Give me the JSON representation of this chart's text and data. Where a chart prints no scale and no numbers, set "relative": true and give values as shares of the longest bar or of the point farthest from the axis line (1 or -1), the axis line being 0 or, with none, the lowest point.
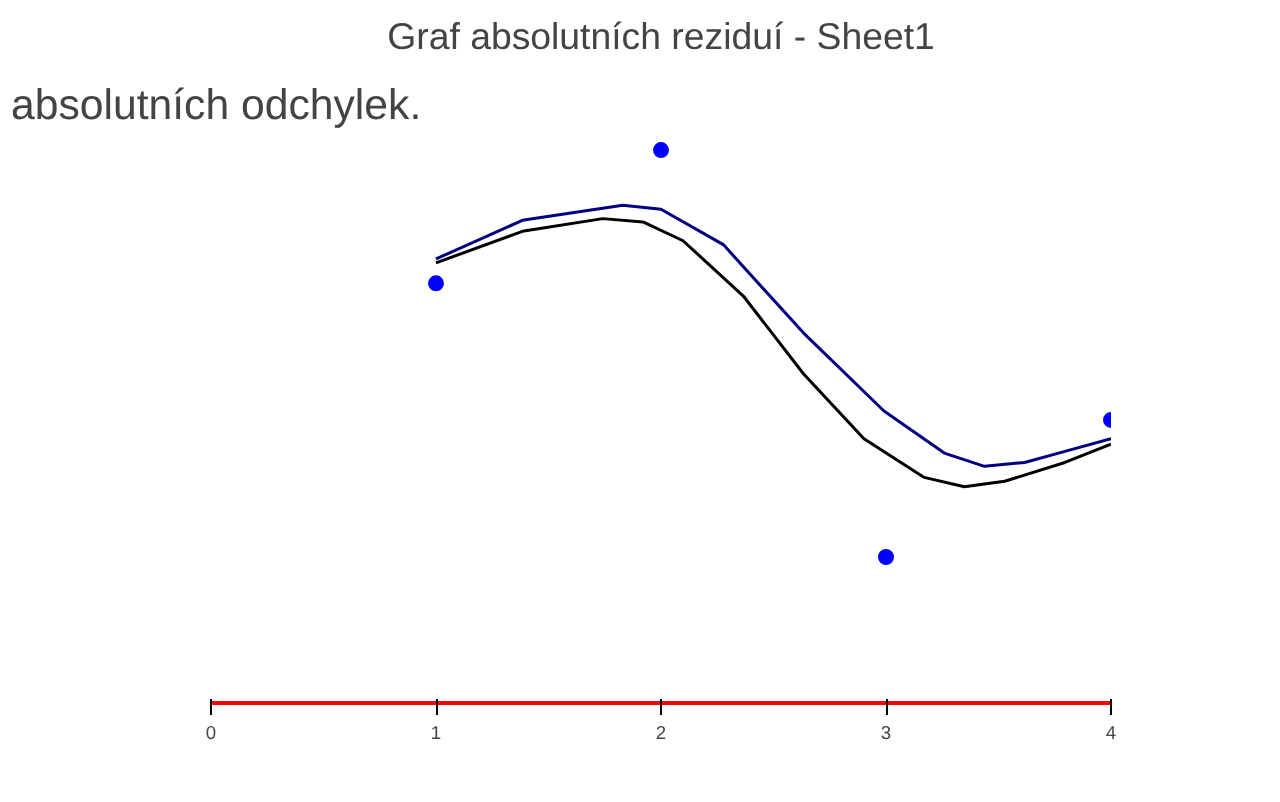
{
  "chart_data": {
    "type": "scatter",
    "title": "Graf absolutních reziduí - Sheet1",
    "annotations": [
      "absolutních odchylek."
    ],
    "relative": true,
    "marker": "circle",
    "xlim": [
      0,
      4
    ],
    "xticks": [
      0,
      1,
      2,
      3,
      4
    ],
    "series": [
      {
        "color": "#0000ff",
        "x": [
          1,
          2,
          3,
          4
        ],
        "values": [
          0.759,
          1.0,
          0.264,
          0.512
        ]
      },
      {
        "type": "line",
        "color": "#000080",
        "marker": "none",
        "x": [
          1,
          1.384,
          1.83,
          2,
          2.277,
          2.634,
          2.991,
          3.259,
          3.438,
          3.616,
          3.795,
          4
        ],
        "values": [
          0.803,
          0.873,
          0.9,
          0.893,
          0.829,
          0.669,
          0.528,
          0.452,
          0.428,
          0.435,
          0.455,
          0.478
        ]
      },
      {
        "type": "line",
        "color": "#000000",
        "marker": "none",
        "x": [
          1,
          1.384,
          1.741,
          1.92,
          2.098,
          2.366,
          2.634,
          2.902,
          3.17,
          3.348,
          3.527,
          3.795,
          4
        ],
        "values": [
          0.796,
          0.853,
          0.876,
          0.87,
          0.836,
          0.736,
          0.595,
          0.478,
          0.408,
          0.391,
          0.401,
          0.435,
          0.468
        ]
      }
    ]
  }
}
